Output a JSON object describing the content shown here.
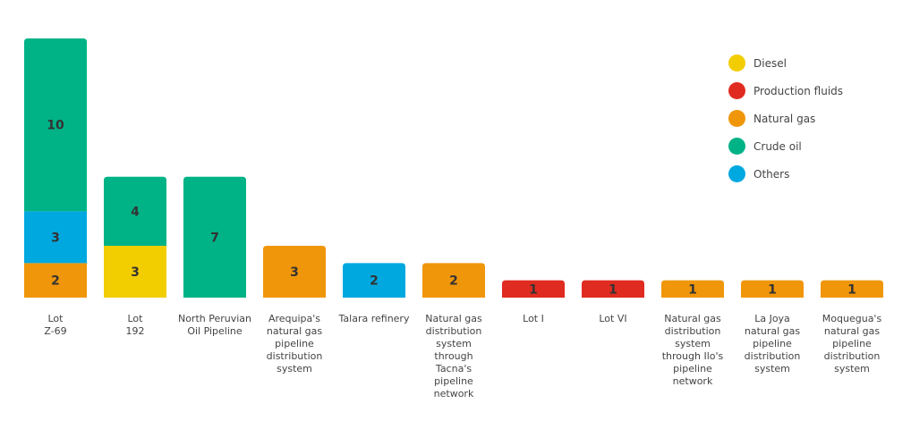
{
  "chart_data": {
    "type": "bar",
    "stacked": true,
    "categories": [
      "Lot\nZ-69",
      "Lot\n192",
      "North Peruvian\nOil Pipeline",
      "Arequipa's\nnatural gas\npipeline\ndistribution\nsystem",
      "Talara refinery",
      "Natural gas\ndistribution\nsystem\nthrough\nTacna's\npipeline\nnetwork",
      "Lot I",
      "Lot VI",
      "Natural gas\ndistribution\nsystem\nthrough Ilo's\npipeline\nnetwork",
      "La Joya\nnatural gas\npipeline\ndistribution\nsystem",
      "Moquegua's\nnatural gas\npipeline\ndistribution\nsystem"
    ],
    "series": [
      {
        "name": "Diesel",
        "color": "#f2cd00",
        "values": [
          0,
          3,
          0,
          0,
          0,
          0,
          0,
          0,
          0,
          0,
          0
        ]
      },
      {
        "name": "Production fluids",
        "color": "#e02b20",
        "values": [
          0,
          0,
          0,
          0,
          0,
          0,
          1,
          1,
          0,
          0,
          0
        ]
      },
      {
        "name": "Natural gas",
        "color": "#f0960a",
        "values": [
          2,
          0,
          0,
          3,
          0,
          2,
          0,
          0,
          1,
          1,
          1
        ]
      },
      {
        "name": "Crude oil",
        "color": "#00b386",
        "values": [
          10,
          4,
          7,
          0,
          0,
          0,
          0,
          0,
          0,
          0,
          0
        ]
      },
      {
        "name": "Others",
        "color": "#00a8e0",
        "values": [
          3,
          0,
          0,
          0,
          2,
          0,
          0,
          0,
          0,
          0,
          0
        ]
      }
    ],
    "stack_order": [
      "Diesel",
      "Production fluids",
      "Natural gas",
      "Others",
      "Crude oil"
    ],
    "data_labels": true,
    "grid": false,
    "legend_position": "top-right"
  }
}
